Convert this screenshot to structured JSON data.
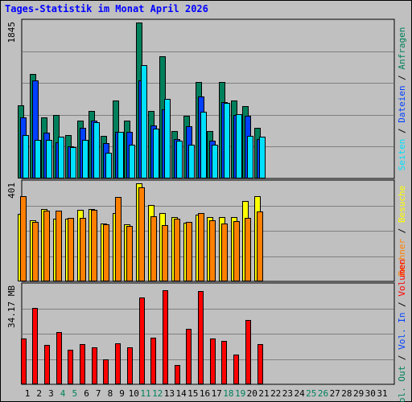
{
  "title": "Tages-Statistik im Monat April 2026",
  "colors": {
    "background": "#c0c0c0",
    "title": "#0000ff",
    "grid": "#808080",
    "anfragen": "#00805c",
    "dateien": "#0040ff",
    "seiten": "#00e0ff",
    "besuche": "#ffff00",
    "rechner": "#ff8000",
    "volumen": "#ff0000",
    "vol_in": "#0040ff",
    "vol_out": "#00805c",
    "weekend": "#00805c",
    "weekday": "#000000"
  },
  "chart_data": [
    {
      "type": "bar",
      "panel": "top",
      "categories": [
        "1",
        "2",
        "3",
        "4",
        "5",
        "6",
        "7",
        "8",
        "9",
        "10",
        "11",
        "12",
        "13",
        "14",
        "15",
        "16",
        "17",
        "18",
        "19",
        "20",
        "21",
        "22",
        "23",
        "24",
        "25",
        "26",
        "27",
        "28",
        "29",
        "30",
        "31"
      ],
      "weekend_days": [
        4,
        5,
        11,
        12,
        18,
        19,
        25,
        26
      ],
      "ymax_label": "1845",
      "ylim": [
        0,
        1845
      ],
      "series": [
        {
          "name": "Anfragen",
          "values": [
            870,
            1240,
            720,
            750,
            510,
            680,
            800,
            500,
            920,
            680,
            1845,
            800,
            1450,
            560,
            740,
            1140,
            560,
            1140,
            920,
            860,
            600,
            0,
            0,
            0,
            0,
            0,
            0,
            0,
            0,
            0,
            0
          ]
        },
        {
          "name": "Dateien",
          "values": [
            720,
            1160,
            540,
            430,
            380,
            600,
            680,
            420,
            550,
            550,
            1160,
            630,
            820,
            470,
            620,
            970,
            450,
            900,
            750,
            740,
            470,
            0,
            0,
            0,
            0,
            0,
            0,
            0,
            0,
            0,
            0
          ]
        },
        {
          "name": "Seiten",
          "values": [
            510,
            460,
            460,
            490,
            370,
            460,
            670,
            300,
            550,
            400,
            1340,
            590,
            940,
            450,
            400,
            790,
            400,
            890,
            760,
            500,
            490,
            0,
            0,
            0,
            0,
            0,
            0,
            0,
            0,
            0,
            0
          ]
        }
      ],
      "y_legend": [
        "Anfragen",
        "Dateien",
        "Seiten"
      ]
    },
    {
      "type": "bar",
      "panel": "middle",
      "categories": [
        "1",
        "2",
        "3",
        "4",
        "5",
        "6",
        "7",
        "8",
        "9",
        "10",
        "11",
        "12",
        "13",
        "14",
        "15",
        "16",
        "17",
        "18",
        "19",
        "20",
        "21",
        "22",
        "23",
        "24",
        "25",
        "26",
        "27",
        "28",
        "29",
        "30",
        "31"
      ],
      "ymax_label": "401",
      "ylim": [
        0,
        401
      ],
      "series": [
        {
          "name": "Besuche",
          "values": [
            276,
            250,
            296,
            255,
            258,
            293,
            295,
            238,
            278,
            233,
            401,
            313,
            278,
            262,
            241,
            272,
            262,
            262,
            262,
            330,
            350,
            0,
            0,
            0,
            0,
            0,
            0,
            0,
            0,
            0,
            0
          ]
        },
        {
          "name": "Rechner",
          "values": [
            350,
            244,
            289,
            288,
            260,
            261,
            294,
            234,
            344,
            227,
            384,
            266,
            230,
            256,
            242,
            278,
            251,
            236,
            248,
            261,
            286,
            0,
            0,
            0,
            0,
            0,
            0,
            0,
            0,
            0,
            0
          ]
        }
      ],
      "y_legend": [
        "Besuche",
        "Rechner"
      ]
    },
    {
      "type": "bar",
      "panel": "bottom",
      "categories": [
        "1",
        "2",
        "3",
        "4",
        "5",
        "6",
        "7",
        "8",
        "9",
        "10",
        "11",
        "12",
        "13",
        "14",
        "15",
        "16",
        "17",
        "18",
        "19",
        "20",
        "21",
        "22",
        "23",
        "24",
        "25",
        "26",
        "27",
        "28",
        "29",
        "30",
        "31"
      ],
      "ymax_label": "34.17 MB",
      "ylim": [
        0,
        34.17
      ],
      "series": [
        {
          "name": "Volumen",
          "values": [
            16.0,
            26.5,
            13.6,
            18.3,
            12.0,
            14.0,
            13.0,
            8.7,
            14.3,
            12.8,
            30.3,
            16.3,
            32.8,
            6.6,
            19.3,
            32.6,
            15.9,
            15.2,
            10.4,
            22.4,
            14.0,
            0,
            0,
            0,
            0,
            0,
            0,
            0,
            0,
            0,
            0
          ]
        }
      ],
      "y_legend": [
        "Volumen",
        "Vol. In",
        "Vol. Out"
      ]
    }
  ]
}
